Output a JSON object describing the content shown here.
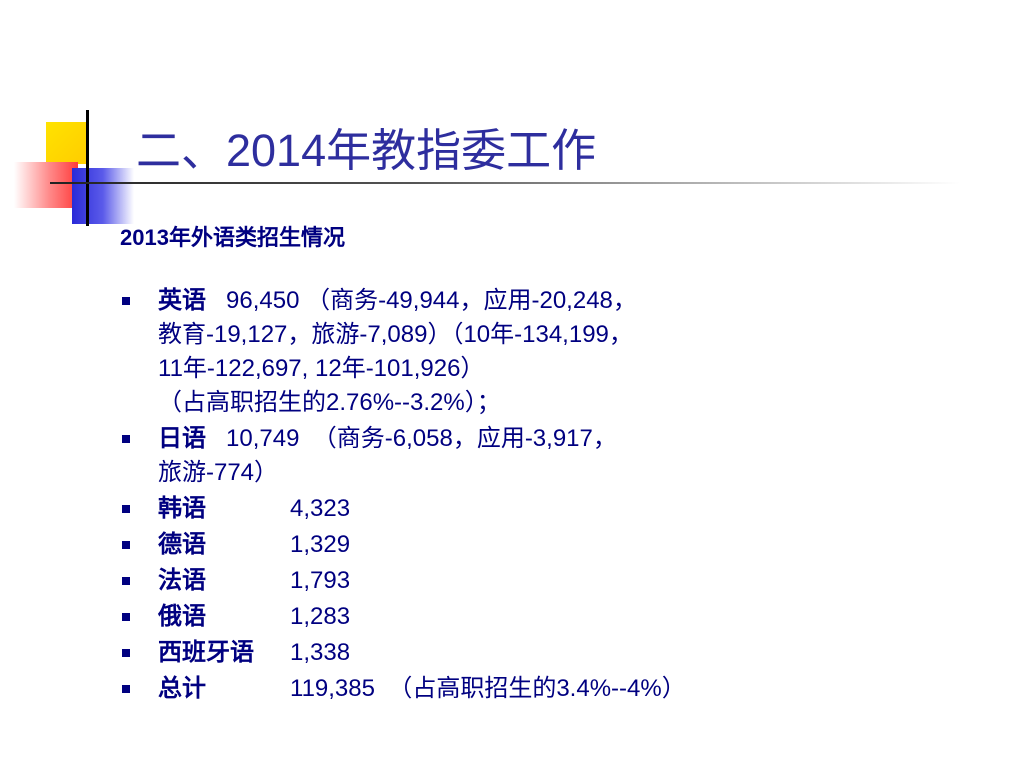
{
  "slide": {
    "title": "二、2014年教指委工作",
    "subtitle": "2013年外语类招生情况"
  },
  "items": [
    {
      "name": "英语",
      "count": "96,450",
      "lines": [
        "（商务-49,944，应用-20,248，",
        "教育-19,127，旅游-7,089）（10年-134,199，",
        "11年-122,697, 12年-101,926）",
        "（占高职招生的2.76%--3.2%）；"
      ]
    },
    {
      "name": "日语",
      "count": "10,749",
      "lines": [
        "（商务-6,058，应用-3,917，",
        "旅游-774）"
      ]
    },
    {
      "name": "韩语",
      "count": "4,323"
    },
    {
      "name": "德语",
      "count": "1,329"
    },
    {
      "name": "法语",
      "count": "1,793"
    },
    {
      "name": "俄语",
      "count": "1,283"
    },
    {
      "name": "西班牙语",
      "count": "1,338"
    },
    {
      "name": "总计",
      "count": "119,385",
      "note": "（占高职招生的3.4%--4%）"
    }
  ],
  "colors": {
    "title": "#2e2e9e",
    "text": "#000080",
    "accent_yellow": "#ffcc00",
    "accent_red": "#ff3b3b",
    "accent_blue": "#2a2ad8"
  }
}
